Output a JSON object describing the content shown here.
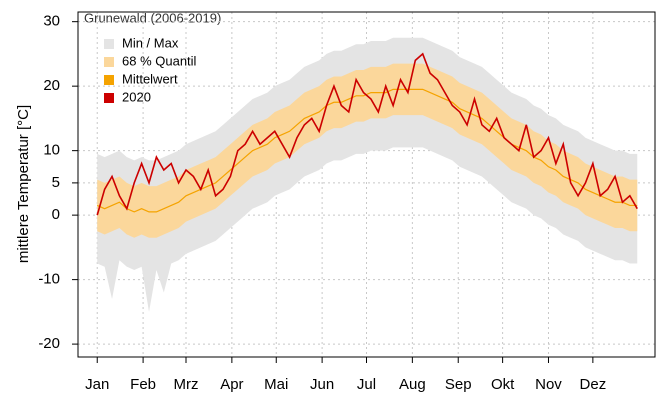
{
  "chart_data": {
    "type": "line",
    "legend_title": "Grunewald (2006-2019)",
    "ylabel": "mittlere Temperatur [°C]",
    "x": [
      1,
      6,
      11,
      16,
      21,
      26,
      31,
      36,
      41,
      46,
      51,
      56,
      61,
      66,
      71,
      76,
      81,
      86,
      91,
      96,
      101,
      106,
      111,
      116,
      121,
      126,
      131,
      136,
      141,
      146,
      151,
      156,
      161,
      166,
      171,
      176,
      181,
      186,
      191,
      196,
      201,
      206,
      211,
      216,
      221,
      226,
      231,
      236,
      241,
      246,
      251,
      256,
      261,
      266,
      271,
      276,
      281,
      286,
      291,
      296,
      301,
      306,
      311,
      316,
      321,
      326,
      331,
      336,
      341,
      346,
      351,
      356,
      361,
      366
    ],
    "xlim": [
      -12,
      378
    ],
    "xticks": [
      {
        "value": 1,
        "label": "Jan"
      },
      {
        "value": 32,
        "label": "Feb"
      },
      {
        "value": 61,
        "label": "Mrz"
      },
      {
        "value": 92,
        "label": "Apr"
      },
      {
        "value": 122,
        "label": "Mai"
      },
      {
        "value": 153,
        "label": "Jun"
      },
      {
        "value": 183,
        "label": "Jul"
      },
      {
        "value": 214,
        "label": "Aug"
      },
      {
        "value": 245,
        "label": "Sep"
      },
      {
        "value": 275,
        "label": "Okt"
      },
      {
        "value": 306,
        "label": "Nov"
      },
      {
        "value": 336,
        "label": "Dez"
      }
    ],
    "ylim": [
      -22,
      31.5
    ],
    "yticks": [
      -20,
      -10,
      0,
      5,
      10,
      20,
      30
    ],
    "grid": true,
    "legend": "top-left",
    "series": [
      {
        "name": "Min / Max",
        "color": "#e4e4e4",
        "low": [
          -7.5,
          -8,
          -13,
          -7,
          -8,
          -8.5,
          -8,
          -15,
          -8.5,
          -12,
          -7.5,
          -7,
          -6,
          -5.5,
          -5,
          -4.5,
          -4,
          -3,
          -2,
          -1,
          0,
          1,
          1.5,
          2,
          3,
          3.5,
          4,
          5,
          6,
          6.5,
          7,
          8,
          8.5,
          8.5,
          9,
          9.5,
          9.5,
          10,
          10,
          10,
          10.5,
          10.5,
          10.5,
          10.5,
          10.5,
          10,
          9.5,
          9,
          8.5,
          7.5,
          7,
          6.5,
          6,
          5,
          4,
          3,
          2,
          1.5,
          1,
          0,
          -0.5,
          -1.5,
          -2,
          -3,
          -3.5,
          -4,
          -5,
          -5.5,
          -6,
          -6.5,
          -7,
          -7,
          -7.5,
          -7.5
        ],
        "high": [
          9.5,
          9,
          9.5,
          10,
          9,
          8.5,
          9,
          8.5,
          8.5,
          9,
          9.5,
          10,
          11,
          11.5,
          12,
          12.5,
          13,
          14,
          15,
          16,
          17,
          18,
          18.5,
          19,
          20,
          20.5,
          21,
          22,
          23,
          23.5,
          24,
          25,
          25.5,
          25.5,
          26,
          26.5,
          26.5,
          27,
          27,
          27,
          27.5,
          27.5,
          27.5,
          27.5,
          27.5,
          27,
          26.5,
          26,
          25.5,
          24.5,
          24,
          23.5,
          23,
          22,
          21,
          20,
          19,
          18.5,
          18,
          17,
          16.5,
          15.5,
          15,
          14,
          13.5,
          13,
          12,
          11.5,
          11,
          10.5,
          10,
          10,
          9.5,
          9.5
        ]
      },
      {
        "name": "68 % Quantil",
        "color": "#fbd79b",
        "low": [
          -2.5,
          -3,
          -2.5,
          -2,
          -3,
          -3.5,
          -3,
          -3.5,
          -3.5,
          -3,
          -2.5,
          -2,
          -1,
          -0.5,
          0,
          0.5,
          1,
          2,
          3,
          4,
          5,
          6,
          6.5,
          7,
          8,
          8.5,
          9,
          10,
          11,
          11.5,
          12,
          13,
          13.5,
          13.5,
          14,
          14.5,
          14.5,
          15,
          15,
          15,
          15.5,
          15.5,
          15.5,
          15.5,
          15.5,
          15,
          14.5,
          14,
          13.5,
          12.5,
          12,
          11.5,
          11,
          10,
          9,
          8,
          7,
          6.5,
          6,
          5,
          4.5,
          3.5,
          3,
          2,
          1.5,
          1,
          0,
          -0.5,
          -1,
          -1.5,
          -2,
          -2,
          -2.5,
          -2.5
        ],
        "high": [
          5.5,
          5,
          5.5,
          6,
          5,
          4.5,
          5,
          4.5,
          4.5,
          5,
          5.5,
          6,
          7,
          7.5,
          8,
          8.5,
          9,
          10,
          11,
          12,
          13,
          14,
          14.5,
          15,
          16,
          16.5,
          17,
          18,
          19,
          19.5,
          20,
          21,
          21.5,
          21.5,
          22,
          22.5,
          22.5,
          23,
          23,
          23,
          23.5,
          23.5,
          23.5,
          23.5,
          23.5,
          23,
          22.5,
          22,
          21.5,
          20.5,
          20,
          19.5,
          19,
          18,
          17,
          16,
          15,
          14.5,
          14,
          13,
          12.5,
          11.5,
          11,
          10,
          9.5,
          9,
          8,
          7.5,
          7,
          6.5,
          6,
          6,
          5.5,
          5.5
        ]
      },
      {
        "name": "Mittelwert",
        "color": "#f5a300",
        "values": [
          1.5,
          1,
          1.5,
          2,
          1,
          0.5,
          1,
          0.5,
          0.5,
          1,
          1.5,
          2,
          3,
          3.5,
          4,
          4.5,
          5,
          6,
          7,
          8,
          9,
          10,
          10.5,
          11,
          12,
          12.5,
          13,
          14,
          15,
          15.5,
          16,
          17,
          17.5,
          17.5,
          18,
          18.5,
          18.5,
          19,
          19,
          19,
          19.5,
          19.5,
          19.5,
          19.5,
          19.5,
          19,
          18.5,
          18,
          17.5,
          16.5,
          16,
          15.5,
          15,
          14,
          13,
          12,
          11,
          10.5,
          10,
          9,
          8.5,
          7.5,
          7,
          6,
          5.5,
          5,
          4,
          3.5,
          3,
          2.5,
          2,
          2,
          1.5,
          1.5
        ]
      },
      {
        "name": "2020",
        "color": "#cc0000",
        "values": [
          0,
          4,
          6,
          3,
          1,
          5,
          8,
          5,
          9,
          7,
          8,
          5,
          7,
          6,
          4,
          7,
          3,
          4,
          6,
          10,
          11,
          13,
          11,
          12,
          13,
          11,
          9,
          12,
          14,
          15,
          13,
          17,
          20,
          17,
          16,
          21,
          19,
          18,
          16,
          20,
          17,
          21,
          19,
          24,
          25,
          22,
          21,
          19,
          17,
          16,
          14,
          18,
          14,
          13,
          15,
          12,
          11,
          10,
          14,
          9,
          10,
          12,
          8,
          11,
          5,
          3,
          5,
          8,
          3,
          4,
          6,
          2,
          3,
          1
        ]
      }
    ]
  }
}
